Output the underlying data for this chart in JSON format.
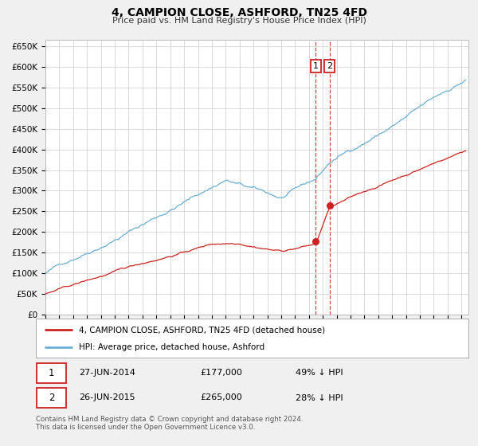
{
  "title": "4, CAMPION CLOSE, ASHFORD, TN25 4FD",
  "subtitle": "Price paid vs. HM Land Registry's House Price Index (HPI)",
  "ytick_values": [
    0,
    50000,
    100000,
    150000,
    200000,
    250000,
    300000,
    350000,
    400000,
    450000,
    500000,
    550000,
    600000,
    650000
  ],
  "xmin": 1995.0,
  "xmax": 2025.5,
  "ymin": 0,
  "ymax": 665000,
  "sale1_date": 2014.49,
  "sale1_price": 177000,
  "sale2_date": 2015.49,
  "sale2_price": 265000,
  "hpi_color": "#6baed6",
  "price_color": "#cc2222",
  "vline_color": "#cc2222",
  "background_color": "#f0f0f0",
  "plot_bg_color": "#ffffff",
  "grid_color": "#cccccc",
  "legend_label_price": "4, CAMPION CLOSE, ASHFORD, TN25 4FD (detached house)",
  "legend_label_hpi": "HPI: Average price, detached house, Ashford",
  "footer_text": "Contains HM Land Registry data © Crown copyright and database right 2024.\nThis data is licensed under the Open Government Licence v3.0.",
  "ann1_date": "27-JUN-2014",
  "ann1_price": "£177,000",
  "ann1_hpi": "49% ↓ HPI",
  "ann2_date": "26-JUN-2015",
  "ann2_price": "£265,000",
  "ann2_hpi": "28% ↓ HPI"
}
